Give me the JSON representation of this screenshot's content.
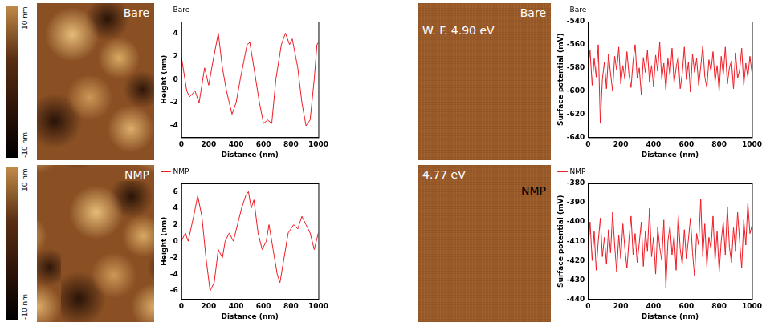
{
  "chart_data": [
    {
      "type": "line",
      "x_label": "Distance (nm)",
      "y_label": "Height (nm)",
      "x": [
        0,
        40,
        60,
        100,
        130,
        170,
        200,
        230,
        270,
        300,
        330,
        370,
        400,
        430,
        480,
        500,
        530,
        570,
        600,
        630,
        660,
        690,
        730,
        760,
        790,
        810,
        850,
        880,
        910,
        940,
        970,
        990,
        1000
      ],
      "series": [
        {
          "name": "Bare",
          "color": "#ee1c25",
          "values": [
            2,
            -1,
            -1.5,
            -1,
            -2,
            1,
            -0.5,
            1.5,
            4,
            1,
            -1,
            -3,
            -2,
            0,
            3,
            3.2,
            1,
            -2,
            -3.8,
            -3.5,
            -3.8,
            0,
            3,
            4,
            3,
            3.5,
            1,
            -2,
            -4,
            -3.5,
            0,
            3,
            3.2
          ]
        }
      ],
      "xlim": [
        0,
        1000
      ],
      "xticks": [
        0,
        200,
        400,
        600,
        800,
        1000
      ],
      "ylim": [
        -5,
        5
      ],
      "yticks": [
        -4,
        -2,
        0,
        2,
        4
      ],
      "grid": false,
      "legend": "top"
    },
    {
      "type": "line",
      "x_label": "Distance (nm)",
      "y_label": "Height (nm)",
      "x": [
        0,
        30,
        50,
        90,
        120,
        150,
        180,
        210,
        240,
        270,
        300,
        320,
        350,
        380,
        410,
        440,
        470,
        490,
        510,
        530,
        560,
        590,
        620,
        640,
        670,
        700,
        720,
        750,
        780,
        820,
        850,
        880,
        910,
        940,
        970,
        1000
      ],
      "series": [
        {
          "name": "NMP",
          "color": "#ee1c25",
          "values": [
            0,
            1,
            0,
            3,
            5.5,
            3,
            -2,
            -6,
            -5,
            -1,
            -2,
            0,
            1,
            0,
            2,
            4,
            5.5,
            6,
            4,
            5,
            1,
            -1,
            0,
            2,
            -1,
            -4,
            -5,
            -2,
            1,
            2,
            1.5,
            3,
            2,
            1,
            -1,
            1
          ]
        }
      ],
      "xlim": [
        0,
        1000
      ],
      "xticks": [
        0,
        200,
        400,
        600,
        800,
        1000
      ],
      "ylim": [
        -7,
        7
      ],
      "yticks": [
        -6,
        -4,
        -2,
        0,
        2,
        4,
        6
      ],
      "grid": false,
      "legend": "top"
    },
    {
      "type": "line",
      "x_label": "Distance (nm)",
      "y_label": "Surface potential (mV)",
      "x": [
        0,
        12.5,
        25,
        37.5,
        50,
        62.5,
        75,
        87.5,
        100,
        112.5,
        125,
        137.5,
        150,
        162.5,
        175,
        187.5,
        200,
        212.5,
        225,
        237.5,
        250,
        262.5,
        275,
        287.5,
        300,
        312.5,
        325,
        337.5,
        350,
        362.5,
        375,
        387.5,
        400,
        412.5,
        425,
        437.5,
        450,
        462.5,
        475,
        487.5,
        500,
        512.5,
        525,
        537.5,
        550,
        562.5,
        575,
        587.5,
        600,
        612.5,
        625,
        637.5,
        650,
        662.5,
        675,
        687.5,
        700,
        712.5,
        725,
        737.5,
        750,
        762.5,
        775,
        787.5,
        800,
        812.5,
        825,
        837.5,
        850,
        862.5,
        875,
        887.5,
        900,
        912.5,
        925,
        937.5,
        950,
        962.5,
        975,
        987.5,
        1000
      ],
      "series": [
        {
          "name": "Bare",
          "color": "#ee1c25",
          "values": [
            -580,
            -565,
            -595,
            -572,
            -588,
            -560,
            -628,
            -590,
            -575,
            -598,
            -568,
            -585,
            -600,
            -570,
            -582,
            -562,
            -594,
            -578,
            -590,
            -566,
            -586,
            -597,
            -574,
            -560,
            -589,
            -580,
            -603,
            -571,
            -584,
            -565,
            -592,
            -578,
            -596,
            -569,
            -583,
            -558,
            -590,
            -576,
            -599,
            -572,
            -587,
            -563,
            -593,
            -580,
            -570,
            -598,
            -585,
            -562,
            -590,
            -575,
            -601,
            -568,
            -584,
            -572,
            -595,
            -579,
            -561,
            -588,
            -597,
            -573,
            -583,
            -566,
            -592,
            -578,
            -600,
            -570,
            -586,
            -562,
            -594,
            -580,
            -574,
            -598,
            -567,
            -589,
            -582,
            -563,
            -595,
            -576,
            -588,
            -570,
            -584
          ]
        }
      ],
      "xlim": [
        0,
        1000
      ],
      "xticks": [
        0,
        200,
        400,
        600,
        800,
        1000
      ],
      "ylim": [
        -640,
        -540
      ],
      "yticks": [
        -640,
        -620,
        -600,
        -580,
        -560,
        -540
      ],
      "grid": false,
      "legend": "top"
    },
    {
      "type": "line",
      "x_label": "Distance (nm)",
      "y_label": "Surface potential (mV)",
      "x": [
        0,
        12.5,
        25,
        37.5,
        50,
        62.5,
        75,
        87.5,
        100,
        112.5,
        125,
        137.5,
        150,
        162.5,
        175,
        187.5,
        200,
        212.5,
        225,
        237.5,
        250,
        262.5,
        275,
        287.5,
        300,
        312.5,
        325,
        337.5,
        350,
        362.5,
        375,
        387.5,
        400,
        412.5,
        425,
        437.5,
        450,
        462.5,
        475,
        487.5,
        500,
        512.5,
        525,
        537.5,
        550,
        562.5,
        575,
        587.5,
        600,
        612.5,
        625,
        637.5,
        650,
        662.5,
        675,
        687.5,
        700,
        712.5,
        725,
        737.5,
        750,
        762.5,
        775,
        787.5,
        800,
        812.5,
        825,
        837.5,
        850,
        862.5,
        875,
        887.5,
        900,
        912.5,
        925,
        937.5,
        950,
        962.5,
        975,
        987.5,
        1000
      ],
      "series": [
        {
          "name": "NMP",
          "color": "#ee1c25",
          "values": [
            -415,
            -400,
            -420,
            -405,
            -425,
            -410,
            -398,
            -418,
            -408,
            -422,
            -404,
            -416,
            -395,
            -412,
            -426,
            -407,
            -419,
            -401,
            -414,
            -424,
            -409,
            -397,
            -417,
            -406,
            -421,
            -411,
            -400,
            -423,
            -405,
            -415,
            -393,
            -418,
            -408,
            -427,
            -403,
            -413,
            -420,
            -399,
            -434,
            -410,
            -402,
            -417,
            -407,
            -425,
            -396,
            -414,
            -422,
            -404,
            -419,
            -409,
            -398,
            -416,
            -428,
            -406,
            -412,
            -388,
            -418,
            -401,
            -423,
            -408,
            -414,
            -397,
            -420,
            -405,
            -426,
            -410,
            -400,
            -417,
            -392,
            -413,
            -421,
            -403,
            -415,
            -395,
            -410,
            -424,
            -399,
            -412,
            -390,
            -406,
            -402
          ]
        }
      ],
      "xlim": [
        0,
        1000
      ],
      "xticks": [
        0,
        200,
        400,
        600,
        800,
        1000
      ],
      "ylim": [
        -440,
        -380
      ],
      "yticks": [
        -440,
        -430,
        -420,
        -410,
        -400,
        -390,
        -380
      ],
      "grid": false,
      "legend": "top"
    }
  ],
  "afm_images": [
    {
      "label": "Bare",
      "colorbar_range": [
        -10,
        10
      ],
      "colorbar_ticks": [
        {
          "value": 10,
          "label": "10 nm"
        },
        {
          "value": -10,
          "label": "-10 nm"
        }
      ]
    },
    {
      "label": "NMP",
      "colorbar_range": [
        -10,
        10
      ],
      "colorbar_ticks": [
        {
          "value": 10,
          "label": "10 nm"
        },
        {
          "value": -10,
          "label": "-10 nm"
        }
      ]
    }
  ],
  "kpfm_images": [
    {
      "label": "Bare",
      "work_function": "W. F. 4.90 eV"
    },
    {
      "label": "NMP",
      "work_function": "4.77 eV"
    }
  ]
}
